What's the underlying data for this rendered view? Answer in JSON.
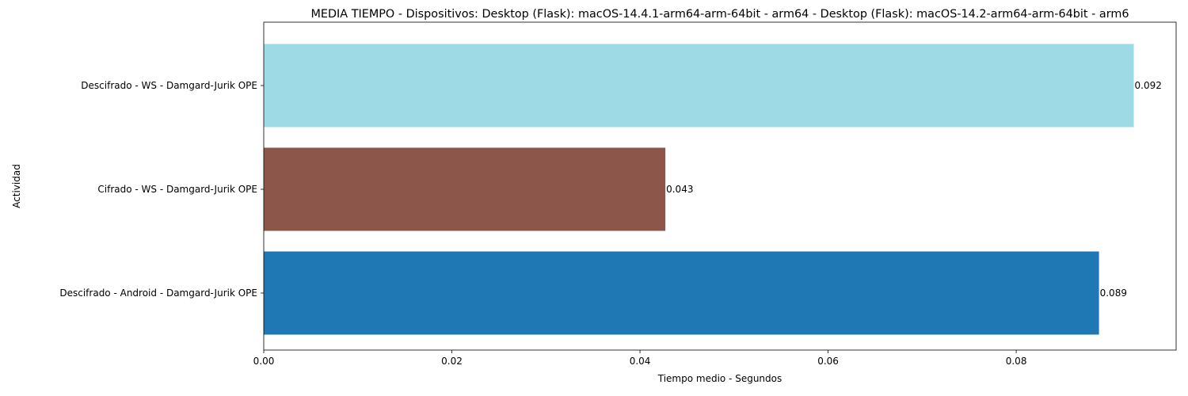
{
  "chart_data": {
    "type": "bar",
    "orientation": "horizontal",
    "title": "MEDIA TIEMPO - Dispositivos: Desktop (Flask): macOS-14.4.1-arm64-arm-64bit - arm64 - Desktop (Flask): macOS-14.2-arm64-arm-64bit - arm6",
    "xlabel": "Tiempo medio - Segundos",
    "ylabel": "Actividad",
    "xlim": [
      0,
      0.097
    ],
    "xticks": [
      0.0,
      0.02,
      0.04,
      0.06,
      0.08
    ],
    "xtick_labels": [
      "0.00",
      "0.02",
      "0.04",
      "0.06",
      "0.08"
    ],
    "categories": [
      "Descifrado - Android - Damgard-Jurik OPE",
      "Cifrado - WS - Damgard-Jurik OPE",
      "Descifrado - WS - Damgard-Jurik OPE"
    ],
    "values": [
      0.0888,
      0.0427,
      0.0925
    ],
    "data_labels": [
      "0.089",
      "0.043",
      "0.092"
    ],
    "colors": [
      "#1f77b4",
      "#8c564b",
      "#9edae5"
    ],
    "grid": false,
    "legend": "none"
  }
}
